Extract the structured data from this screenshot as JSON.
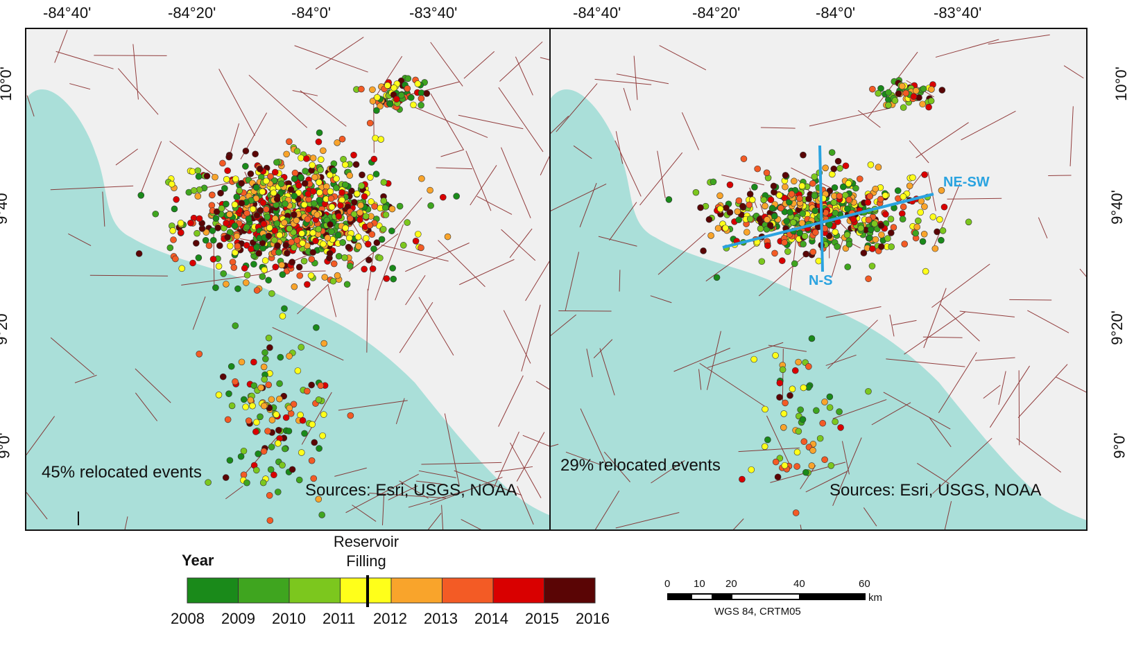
{
  "top_ticks": [
    "-84°40'",
    "-84°20'",
    "-84°0'",
    "-83°40'"
  ],
  "right_top_ticks": [
    "-84°40'",
    "-84°20'",
    "-84°0'",
    "-83°40'"
  ],
  "lat_ticks": [
    "10°0'",
    "9°40'",
    "9°20'",
    "9°0'"
  ],
  "left_panel": {
    "note": "45% relocated events",
    "source": "Sources: Esri, USGS, NOAA"
  },
  "right_panel": {
    "note": "29% relocated events",
    "source": "Sources: Esri, USGS, NOAA",
    "line_ns": "N-S",
    "line_nesw": "NE-SW"
  },
  "legend": {
    "title": "Year",
    "reservoir": [
      "Reservoir",
      "Filling"
    ],
    "years": [
      "2008",
      "2009",
      "2010",
      "2011",
      "2012",
      "2013",
      "2014",
      "2015",
      "2016"
    ],
    "colors": [
      "#1a8a1a",
      "#3fa51f",
      "#7cc71e",
      "#ffff1a",
      "#f9a42b",
      "#f35b25",
      "#d90000",
      "#5a0505"
    ]
  },
  "scale": {
    "ticks": [
      "0",
      "10",
      "20",
      "40",
      "60"
    ],
    "unit": "km",
    "crs": "WGS 84, CRTM05"
  },
  "colors": {
    "ocean": "#aadfd9",
    "land": "#f0f0f0",
    "fault": "#7a1010",
    "profile_line": "#2aa3e0"
  }
}
